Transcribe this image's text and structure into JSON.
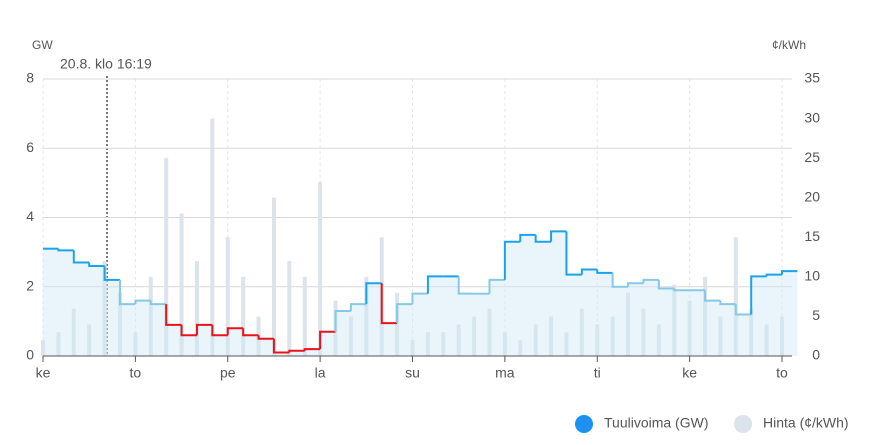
{
  "chart_data": {
    "type": "step-bar",
    "y_label": "GW",
    "y2_label": "¢/kWh",
    "annotation": "20.8. klo 16:19",
    "categories": [
      "ke",
      null,
      null,
      null,
      null,
      null,
      "to",
      null,
      null,
      null,
      null,
      null,
      "pe",
      null,
      null,
      null,
      null,
      null,
      "la",
      null,
      null,
      null,
      null,
      null,
      "su",
      null,
      null,
      null,
      null,
      null,
      "ma",
      null,
      null,
      null,
      null,
      null,
      "ti",
      null,
      null,
      null,
      null,
      null,
      "ke",
      null,
      null,
      null,
      null,
      null,
      "to"
    ],
    "series": [
      {
        "name": "Tuulivoima (GW)",
        "color": "#1e90f0",
        "values": [
          3.1,
          3.05,
          2.7,
          2.6,
          2.2,
          1.5,
          1.6,
          1.5,
          0.9,
          0.6,
          0.9,
          0.6,
          0.8,
          0.6,
          0.5,
          0.1,
          0.15,
          0.2,
          0.7,
          1.3,
          1.5,
          2.1,
          0.95,
          1.5,
          1.8,
          2.3,
          2.3,
          1.8,
          1.8,
          2.2,
          3.3,
          3.5,
          3.3,
          3.6,
          2.35,
          2.5,
          2.4,
          2.0,
          2.1,
          2.2,
          1.95,
          1.9,
          1.9,
          1.6,
          1.5,
          1.2,
          2.3,
          2.35,
          2.45
        ],
        "colors": [
          "#1aa3e8",
          "#1aa3e8",
          "#1aa3e8",
          "#1aa3e8",
          "#1aa3e8",
          "#86c9e6",
          "#86c9e6",
          "#86c9e6",
          "#e8131b",
          "#e8131b",
          "#e8131b",
          "#e8131b",
          "#e8131b",
          "#e8131b",
          "#e8131b",
          "#e8131b",
          "#e8131b",
          "#e8131b",
          "#e8131b",
          "#86c9e6",
          "#86c9e6",
          "#1aa3e8",
          "#e8131b",
          "#86c9e6",
          "#86c9e6",
          "#1aa3e8",
          "#1aa3e8",
          "#86c9e6",
          "#86c9e6",
          "#86c9e6",
          "#1aa3e8",
          "#1aa3e8",
          "#1aa3e8",
          "#1aa3e8",
          "#1aa3e8",
          "#1aa3e8",
          "#1aa3e8",
          "#86c9e6",
          "#86c9e6",
          "#86c9e6",
          "#86c9e6",
          "#86c9e6",
          "#86c9e6",
          "#86c9e6",
          "#86c9e6",
          "#86c9e6",
          "#1aa3e8",
          "#1aa3e8",
          "#1aa3e8"
        ]
      },
      {
        "name": "Hinta (¢/kWh)",
        "color": "#dde3ea",
        "axis": "y2",
        "values": [
          2,
          3,
          6,
          4,
          12,
          8,
          3,
          10,
          25,
          18,
          12,
          30,
          15,
          10,
          5,
          20,
          12,
          10,
          22,
          7,
          5,
          10,
          15,
          8,
          2,
          3,
          3,
          4,
          5,
          6,
          3,
          2,
          4,
          5,
          3,
          6,
          4,
          5,
          8,
          6,
          4,
          9,
          7,
          10,
          5,
          15,
          6,
          4,
          5
        ]
      }
    ],
    "ylim": [
      0,
      8
    ],
    "yticks": [
      0,
      2,
      4,
      6,
      8
    ],
    "y2lim": [
      0,
      35
    ],
    "y2ticks": [
      0,
      5,
      10,
      15,
      20,
      25,
      30,
      35
    ],
    "grid": true,
    "legend": "bottom-right"
  }
}
